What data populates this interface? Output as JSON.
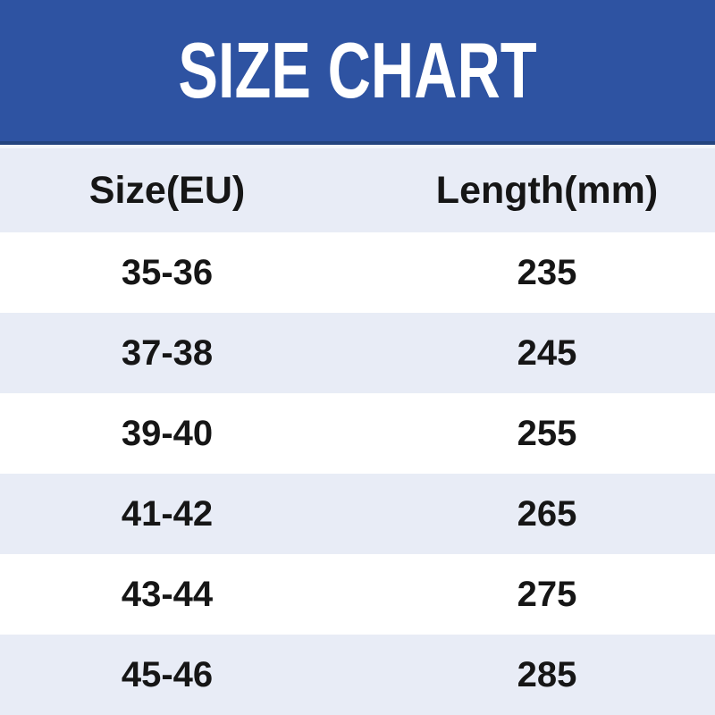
{
  "banner": {
    "title": "SIZE CHART"
  },
  "colors": {
    "banner_bg": "#2E53A2",
    "banner_border": "#24447E",
    "row_alt_bg": "#E8ECF6",
    "row_bg": "#FFFFFF",
    "title_color": "#FFFFFF",
    "text_color": "#161616"
  },
  "chart_data": {
    "type": "table",
    "title": "SIZE CHART",
    "columns": [
      "Size(EU)",
      "Length(mm)"
    ],
    "rows": [
      [
        "35-36",
        "235"
      ],
      [
        "37-38",
        "245"
      ],
      [
        "39-40",
        "255"
      ],
      [
        "41-42",
        "265"
      ],
      [
        "43-44",
        "275"
      ],
      [
        "45-46",
        "285"
      ]
    ],
    "layout_hints": {
      "header_stripe": "lavender",
      "row_striping": "white/lavender alternating",
      "text_align": "center",
      "grid": false
    }
  }
}
